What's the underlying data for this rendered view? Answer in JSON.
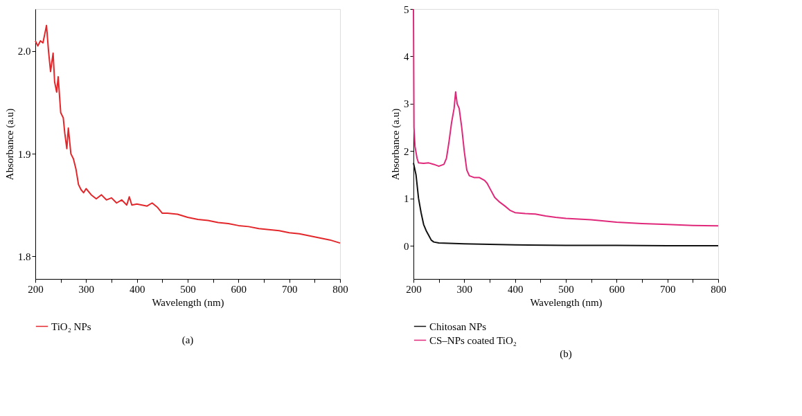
{
  "chart_data": [
    {
      "type": "line",
      "xlabel": "Wavelength (nm)",
      "ylabel": "Absorbance (a.u)",
      "annotations": [
        "(a)"
      ],
      "legend": "bottom",
      "grid": false,
      "xlim": [
        200,
        800
      ],
      "ylim": [
        1.778,
        2.041
      ],
      "xticks": [
        200,
        {
          "value": 250,
          "label": null
        },
        300,
        {
          "value": 350,
          "label": null
        },
        400,
        {
          "value": 450,
          "label": null
        },
        500,
        {
          "value": 550,
          "label": null
        },
        600,
        {
          "value": 650,
          "label": null
        },
        700,
        {
          "value": 750,
          "label": null
        },
        800
      ],
      "yticks": [
        1.8,
        1.9,
        {
          "value": 2,
          "label": "2.0"
        }
      ],
      "series": [
        {
          "name": "TiO₂ NPs",
          "color": "#e3262a",
          "x": [
            200,
            205,
            210,
            215,
            220,
            222,
            226,
            230,
            235,
            238,
            242,
            245,
            250,
            255,
            258,
            262,
            265,
            270,
            275,
            280,
            285,
            290,
            295,
            300,
            310,
            320,
            330,
            340,
            350,
            360,
            370,
            380,
            385,
            390,
            400,
            410,
            420,
            430,
            440,
            450,
            460,
            480,
            500,
            520,
            540,
            560,
            580,
            600,
            620,
            640,
            660,
            680,
            700,
            720,
            740,
            760,
            780,
            800
          ],
          "values": [
            2.01,
            2.005,
            2.01,
            2.008,
            2.02,
            2.025,
            2.0,
            1.98,
            1.998,
            1.97,
            1.96,
            1.975,
            1.94,
            1.935,
            1.92,
            1.905,
            1.925,
            1.9,
            1.895,
            1.885,
            1.87,
            1.865,
            1.862,
            1.866,
            1.86,
            1.856,
            1.86,
            1.855,
            1.857,
            1.852,
            1.855,
            1.85,
            1.858,
            1.85,
            1.851,
            1.85,
            1.849,
            1.852,
            1.848,
            1.842,
            1.842,
            1.841,
            1.838,
            1.836,
            1.835,
            1.833,
            1.832,
            1.83,
            1.829,
            1.827,
            1.826,
            1.825,
            1.823,
            1.822,
            1.82,
            1.818,
            1.816,
            1.813
          ]
        }
      ]
    },
    {
      "type": "line",
      "xlabel": "Wavelength (nm)",
      "ylabel": "Absorbance (a.u)",
      "annotations": [
        "(b)"
      ],
      "legend": "bottom",
      "grid": false,
      "xlim": [
        200,
        800
      ],
      "ylim": [
        -0.7,
        5
      ],
      "xticks": [
        200,
        {
          "value": 250,
          "label": null
        },
        300,
        {
          "value": 350,
          "label": null
        },
        400,
        {
          "value": 450,
          "label": null
        },
        500,
        {
          "value": 550,
          "label": null
        },
        600,
        {
          "value": 650,
          "label": null
        },
        700,
        {
          "value": 750,
          "label": null
        },
        800
      ],
      "yticks": [
        0,
        1,
        2,
        3,
        4,
        5
      ],
      "series": [
        {
          "name": "Chitosan NPs",
          "color": "#111111",
          "x": [
            200,
            205,
            210,
            215,
            220,
            225,
            230,
            235,
            240,
            250,
            300,
            400,
            500,
            600,
            700,
            800
          ],
          "values": [
            1.75,
            1.5,
            1.0,
            0.7,
            0.45,
            0.32,
            0.22,
            0.12,
            0.08,
            0.06,
            0.04,
            0.02,
            0.01,
            0.01,
            0.0,
            0.0
          ]
        },
        {
          "name": "CS–NPs coated TiO₂",
          "color": "#e0287a",
          "x": [
            200,
            201,
            203,
            207,
            210,
            220,
            230,
            240,
            250,
            260,
            265,
            270,
            275,
            280,
            283,
            286,
            290,
            295,
            300,
            305,
            310,
            320,
            330,
            340,
            345,
            350,
            360,
            370,
            380,
            390,
            400,
            420,
            440,
            460,
            480,
            500,
            550,
            600,
            650,
            700,
            750,
            800
          ],
          "values": [
            5.0,
            2.5,
            2.1,
            1.85,
            1.75,
            1.74,
            1.75,
            1.72,
            1.68,
            1.72,
            1.85,
            2.2,
            2.6,
            2.9,
            3.25,
            3.0,
            2.9,
            2.5,
            2.0,
            1.6,
            1.48,
            1.44,
            1.44,
            1.38,
            1.32,
            1.22,
            1.02,
            0.92,
            0.84,
            0.75,
            0.7,
            0.68,
            0.67,
            0.63,
            0.6,
            0.58,
            0.55,
            0.5,
            0.47,
            0.45,
            0.43,
            0.42
          ]
        }
      ]
    }
  ]
}
